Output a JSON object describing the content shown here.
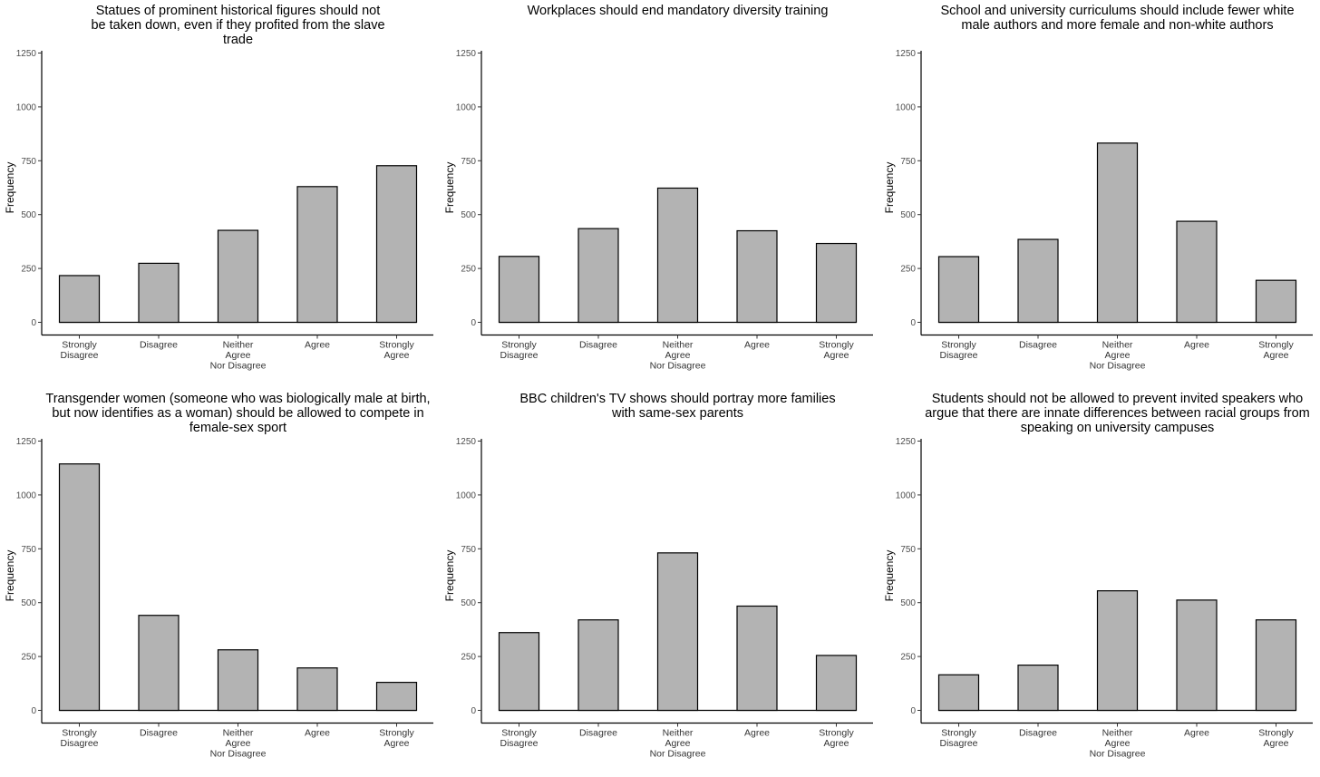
{
  "chart_data": [
    {
      "type": "bar",
      "title": "Statues of prominent historical figures should not be taken down, even if they profited from the slave trade",
      "ylabel": "Frequency",
      "xlabel": "",
      "categories": [
        "Strongly Disagree",
        "Disagree",
        "Neither Agree Nor Disagree",
        "Agree",
        "Strongly Agree"
      ],
      "values": [
        217,
        274,
        427,
        630,
        727
      ],
      "ylim": [
        0,
        1250
      ],
      "yticks": [
        "0",
        "250",
        "500",
        "750",
        "1000",
        "1250"
      ]
    },
    {
      "type": "bar",
      "title": "Workplaces should end mandatory diversity training",
      "ylabel": "Frequency",
      "xlabel": "",
      "categories": [
        "Strongly Disagree",
        "Disagree",
        "Neither Agree Nor Disagree",
        "Agree",
        "Strongly Agree"
      ],
      "values": [
        306,
        435,
        623,
        425,
        366
      ],
      "ylim": [
        0,
        1250
      ],
      "yticks": [
        "0",
        "250",
        "500",
        "750",
        "1000",
        "1250"
      ]
    },
    {
      "type": "bar",
      "title": "School and university curriculums should include fewer white male authors and more female and non-white authors",
      "ylabel": "Frequency",
      "xlabel": "",
      "categories": [
        "Strongly Disagree",
        "Disagree",
        "Neither Agree Nor Disagree",
        "Agree",
        "Strongly Agree"
      ],
      "values": [
        305,
        385,
        832,
        469,
        195
      ],
      "ylim": [
        0,
        1250
      ],
      "yticks": [
        "0",
        "250",
        "500",
        "750",
        "1000",
        "1250"
      ]
    },
    {
      "type": "bar",
      "title": "Transgender women (someone who was biologically male at birth, but now identifies as a woman) should be allowed to compete in female-sex sport",
      "ylabel": "Frequency",
      "xlabel": "",
      "categories": [
        "Strongly Disagree",
        "Disagree",
        "Neither Agree Nor Disagree",
        "Agree",
        "Strongly Agree"
      ],
      "values": [
        1144,
        441,
        281,
        197,
        130
      ],
      "ylim": [
        0,
        1250
      ],
      "yticks": [
        "0",
        "250",
        "500",
        "750",
        "1000",
        "1250"
      ]
    },
    {
      "type": "bar",
      "title": "BBC children's TV shows should portray more families with same-sex parents",
      "ylabel": "Frequency",
      "xlabel": "",
      "categories": [
        "Strongly Disagree",
        "Disagree",
        "Neither Agree Nor Disagree",
        "Agree",
        "Strongly Agree"
      ],
      "values": [
        361,
        420,
        731,
        484,
        255
      ],
      "ylim": [
        0,
        1250
      ],
      "yticks": [
        "0",
        "250",
        "500",
        "750",
        "1000",
        "1250"
      ]
    },
    {
      "type": "bar",
      "title": "Students should not be allowed to prevent invited speakers who argue that there are innate differences between racial groups from speaking on university campuses",
      "ylabel": "Frequency",
      "xlabel": "",
      "categories": [
        "Strongly Disagree",
        "Disagree",
        "Neither Agree Nor Disagree",
        "Agree",
        "Strongly Agree"
      ],
      "values": [
        165,
        210,
        555,
        512,
        420
      ],
      "ylim": [
        0,
        1250
      ],
      "yticks": [
        "0",
        "250",
        "500",
        "750",
        "1000",
        "1250"
      ]
    }
  ],
  "colors": {
    "bar_fill": "#b3b3b3",
    "bar_stroke": "#000000",
    "axis": "#000000"
  }
}
